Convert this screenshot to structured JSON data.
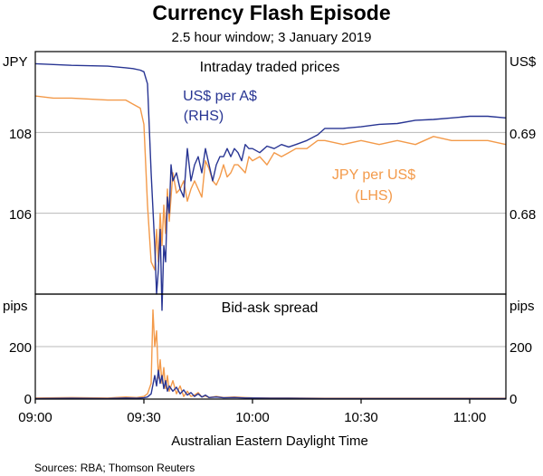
{
  "chart_data": {
    "type": "line",
    "title": "Currency Flash Episode",
    "subtitle": "2.5 hour window; 3 January 2019",
    "xlabel": "Australian Eastern Daylight Time",
    "x_ticks": [
      "09:00",
      "09:30",
      "10:00",
      "10:30",
      "11:00"
    ],
    "x_range_minutes": [
      0,
      130
    ],
    "source": "Sources: RBA; Thomson Reuters",
    "colors": {
      "aud": "#283593",
      "jpy": "#f39a4a",
      "grid": "#b8b8b8",
      "axis": "#000000"
    },
    "panels": [
      {
        "id": "prices",
        "title": "Intraday traded prices",
        "left_unit": "JPY",
        "right_unit": "US$",
        "left_ticks": [
          "108",
          "106"
        ],
        "right_ticks": [
          "0.69",
          "0.68"
        ],
        "left_range": [
          104.0,
          110.0
        ],
        "right_range": [
          0.67,
          0.7
        ],
        "series": [
          {
            "name": "US$ per A$",
            "name_line2": "(RHS)",
            "axis": "right",
            "color": "#283593",
            "x": [
              0,
              5,
              10,
              20,
              25,
              27,
              29,
              30,
              31,
              32,
              33,
              33.5,
              34,
              34.5,
              35,
              35.5,
              36,
              36.5,
              37,
              37.5,
              38,
              39,
              40,
              41,
              42,
              43,
              44,
              45,
              46,
              47,
              48,
              49,
              50,
              51,
              52,
              53,
              54,
              55,
              56,
              57,
              58,
              59,
              60,
              62,
              64,
              66,
              68,
              70,
              72,
              75,
              78,
              80,
              85,
              90,
              95,
              100,
              105,
              110,
              115,
              120,
              125,
              130
            ],
            "y": [
              0.6985,
              0.6984,
              0.6983,
              0.6982,
              0.698,
              0.6979,
              0.6977,
              0.6975,
              0.696,
              0.685,
              0.676,
              0.67,
              0.673,
              0.678,
              0.668,
              0.676,
              0.674,
              0.682,
              0.68,
              0.686,
              0.684,
              0.685,
              0.683,
              0.682,
              0.688,
              0.684,
              0.686,
              0.687,
              0.685,
              0.688,
              0.686,
              0.684,
              0.686,
              0.687,
              0.687,
              0.688,
              0.687,
              0.688,
              0.6875,
              0.6865,
              0.6885,
              0.688,
              0.688,
              0.6875,
              0.6883,
              0.688,
              0.6885,
              0.6882,
              0.6885,
              0.689,
              0.6897,
              0.6905,
              0.6905,
              0.6907,
              0.691,
              0.6911,
              0.6915,
              0.6916,
              0.6918,
              0.692,
              0.692,
              0.6918
            ]
          },
          {
            "name": "JPY per US$",
            "name_line2": "(LHS)",
            "axis": "left",
            "color": "#f39a4a",
            "x": [
              0,
              5,
              10,
              20,
              25,
              27,
              29,
              30,
              31,
              32,
              33,
              33.5,
              34,
              34.5,
              35,
              35.5,
              36,
              36.5,
              37,
              37.5,
              38,
              39,
              40,
              41,
              42,
              43,
              44,
              45,
              46,
              47,
              48,
              49,
              50,
              51,
              52,
              53,
              54,
              55,
              56,
              57,
              58,
              59,
              60,
              62,
              64,
              66,
              68,
              70,
              72,
              75,
              78,
              80,
              85,
              90,
              95,
              100,
              105,
              110,
              115,
              120,
              125,
              130
            ],
            "y": [
              108.9,
              108.85,
              108.85,
              108.8,
              108.8,
              108.7,
              108.6,
              108.2,
              106.2,
              104.8,
              104.6,
              105.6,
              104.8,
              106.0,
              105.2,
              106.2,
              105.5,
              106.6,
              105.8,
              106.4,
              107.0,
              106.5,
              106.6,
              106.8,
              106.3,
              106.6,
              106.8,
              106.6,
              106.4,
              107.3,
              107.1,
              106.8,
              106.7,
              106.9,
              107.2,
              106.9,
              107.0,
              107.2,
              107.2,
              107.1,
              107.0,
              107.4,
              107.3,
              107.4,
              107.2,
              107.5,
              107.4,
              107.5,
              107.6,
              107.6,
              107.8,
              107.8,
              107.7,
              107.8,
              107.7,
              107.8,
              107.7,
              107.9,
              107.8,
              107.8,
              107.8,
              107.7
            ]
          }
        ]
      },
      {
        "id": "spread",
        "title": "Bid-ask spread",
        "left_unit": "pips",
        "right_unit": "pips",
        "left_ticks": [
          "200",
          "0"
        ],
        "right_ticks": [
          "200",
          "0"
        ],
        "range": [
          0,
          400
        ],
        "series": [
          {
            "name": "JPY per US$ spread",
            "color": "#f39a4a",
            "x": [
              0,
              10,
              20,
              25,
              28,
              30,
              31,
              32,
              32.5,
              33,
              33.5,
              34,
              34.5,
              35,
              35.5,
              36,
              36.5,
              37,
              38,
              39,
              40,
              41,
              42,
              43,
              44,
              45,
              46,
              47,
              48,
              50,
              52,
              55,
              58,
              60,
              65,
              70,
              80,
              90,
              100,
              110,
              120,
              130
            ],
            "y": [
              4,
              6,
              4,
              8,
              6,
              10,
              20,
              60,
              340,
              200,
              260,
              80,
              150,
              60,
              120,
              40,
              90,
              30,
              70,
              20,
              50,
              10,
              30,
              10,
              15,
              25,
              8,
              12,
              6,
              10,
              6,
              8,
              6,
              5,
              4,
              4,
              3,
              3,
              3,
              3,
              3,
              3
            ]
          },
          {
            "name": "US$ per A$ spread",
            "color": "#283593",
            "x": [
              0,
              10,
              20,
              25,
              28,
              30,
              31,
              32,
              33,
              33.5,
              34,
              34.5,
              35,
              35.5,
              36,
              36.5,
              37,
              38,
              39,
              40,
              41,
              42,
              43,
              44,
              45,
              46,
              47,
              48,
              50,
              52,
              55,
              58,
              60,
              65,
              70,
              80,
              90,
              100,
              110,
              120,
              130
            ],
            "y": [
              2,
              3,
              2,
              4,
              3,
              5,
              8,
              20,
              90,
              50,
              110,
              60,
              90,
              40,
              70,
              30,
              50,
              30,
              45,
              20,
              35,
              15,
              25,
              10,
              20,
              8,
              15,
              6,
              8,
              5,
              6,
              4,
              4,
              3,
              3,
              2,
              2,
              2,
              2,
              2,
              2
            ]
          }
        ]
      }
    ]
  }
}
